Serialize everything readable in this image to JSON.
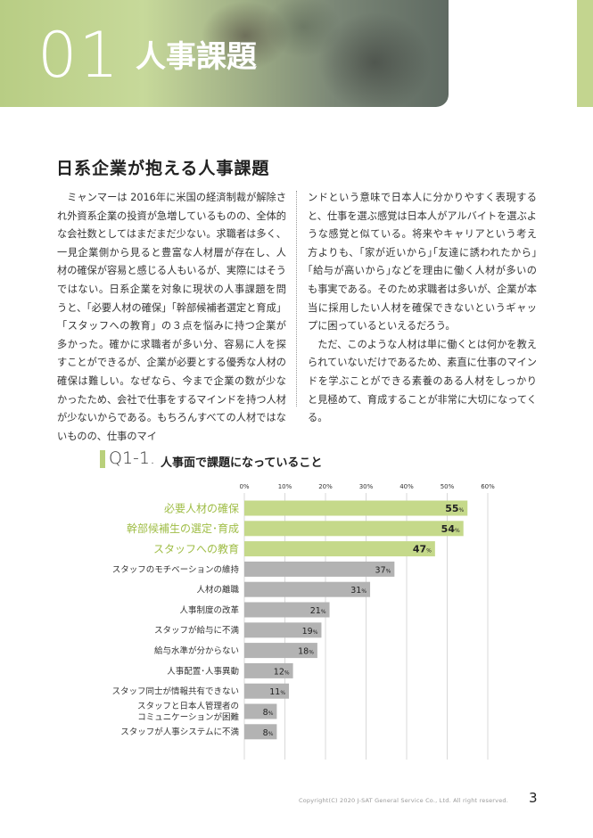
{
  "header": {
    "number": "01",
    "title": "人事課題"
  },
  "section": {
    "heading": "日系企業が抱える人事課題"
  },
  "body": {
    "left_paragraphs": [
      "ミャンマーは 2016年に米国の経済制裁が解除され外資系企業の投資が急増しているものの、全体的な会社数としてはまだまだ少ない。求職者は多く、一見企業側から見ると豊富な人材層が存在し、人材の確保が容易と感じる人もいるが、実際にはそうではない。日系企業を対象に現状の人事課題を問うと、「必要人材の確保」「幹部候補者選定と育成」「スタッフへの教育」の３点を悩みに持つ企業が多かった。確かに求職者が多い分、容易に人を探すことができるが、企業が必要とする優秀な人材の確保は難しい。なぜなら、今まで企業の数が少なかったため、会社で仕事をするマインドを持つ人材が少ないからである。もちろんすべての人材ではないものの、仕事のマイ"
    ],
    "right_paragraphs": [
      "ンドという意味で日本人に分かりやすく表現すると、仕事を選ぶ感覚は日本人がアルバイトを選ぶような感覚と似ている。将来やキャリアという考え方よりも、｢家が近いから｣｢友達に誘われたから｣｢給与が高いから｣などを理由に働く人材が多いのも事実である。そのため求職者は多いが、企業が本当に採用したい人材を確保できないというギャップに困っているといえるだろう。",
      "ただ、このような人材は単に働くとは何かを教えられていないだけであるため、素直に仕事のマインドを学ぶことができる素養のある人材をしっかりと見極めて、育成することが非常に大切になってくる。"
    ]
  },
  "question": {
    "label": "Q1-1.",
    "text": "人事面で課題になっていること"
  },
  "chart_data": {
    "type": "bar",
    "orientation": "horizontal",
    "title": "人事面で課題になっていること",
    "categories": [
      "必要人材の確保",
      "幹部候補生の選定･育成",
      "スタッフへの教育",
      "スタッフのモチベーションの維持",
      "人材の離職",
      "人事制度の改革",
      "スタッフが給与に不満",
      "給与水準が分からない",
      "人事配置･人事異動",
      "スタッフ同士が情報共有できない",
      "スタッフと日本人管理者の\nコミュニケーションが困難",
      "スタッフが人事システムに不満"
    ],
    "values": [
      55,
      54,
      47,
      37,
      31,
      21,
      19,
      18,
      12,
      11,
      8,
      8
    ],
    "highlight": [
      true,
      true,
      true,
      false,
      false,
      false,
      false,
      false,
      false,
      false,
      false,
      false
    ],
    "value_suffix": "%",
    "xlim": [
      0,
      60
    ],
    "ticks": [
      "0%",
      "10%",
      "20%",
      "30%",
      "40%",
      "50%",
      "60%"
    ],
    "grid": true,
    "colors": {
      "highlight_bar": "#c5d98a",
      "normal_bar": "#b3b3b3",
      "highlight_label": "#9fbd46",
      "normal_label": "#333333",
      "grid": "#d9d9d9"
    }
  },
  "footer": {
    "copyright": "Copyright(C) 2020 J-SAT General Service Co., Ltd. All right reserved.",
    "page": "3"
  }
}
